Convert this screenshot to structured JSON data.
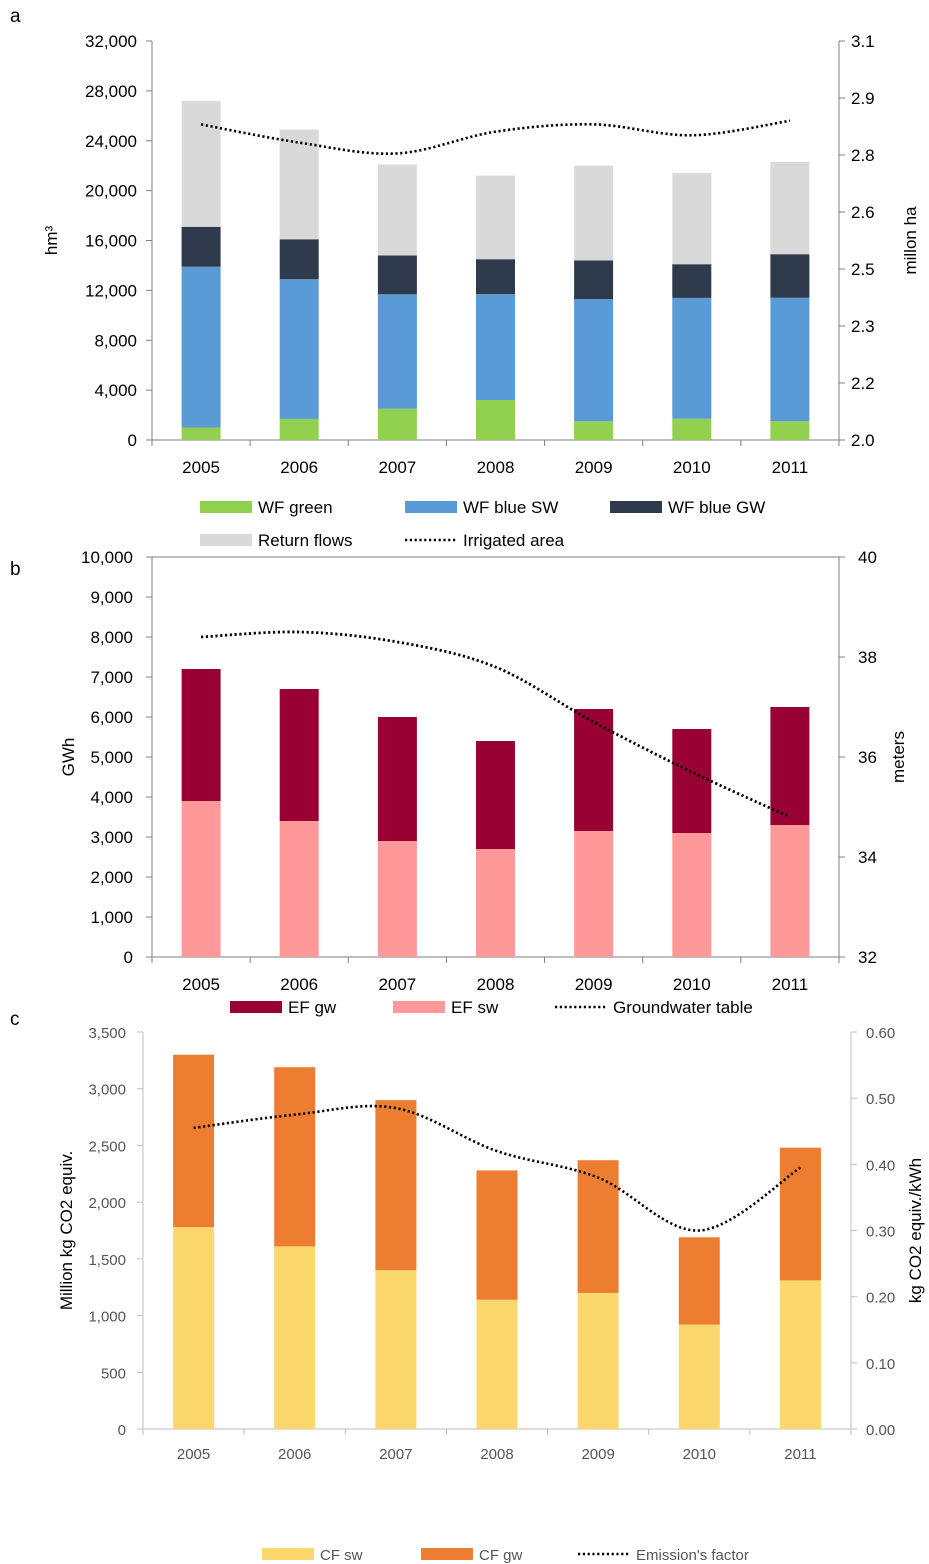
{
  "chart_data": [
    {
      "panel": "a",
      "type": "bar",
      "stacked": true,
      "categories": [
        "2005",
        "2006",
        "2007",
        "2008",
        "2009",
        "2010",
        "2011"
      ],
      "ylabel": "hm³",
      "ylim": [
        0,
        32000
      ],
      "yticks": [
        "0",
        "4,000",
        "8,000",
        "12,000",
        "16,000",
        "20,000",
        "24,000",
        "28,000",
        "32,000"
      ],
      "y2label": "millon ha",
      "y2lim": [
        2.0,
        3.1
      ],
      "y2ticks": [
        "2.0",
        "2.2",
        "2.3",
        "2.5",
        "2.6",
        "2.8",
        "2.9",
        "3.1"
      ],
      "series": [
        {
          "name": "WF green",
          "color": "#92d050",
          "values": [
            1000,
            1700,
            2500,
            3200,
            1500,
            1700,
            1500
          ]
        },
        {
          "name": "WF blue SW",
          "color": "#5b9bd5",
          "values": [
            12900,
            11200,
            9200,
            8500,
            9800,
            9700,
            9900
          ]
        },
        {
          "name": "WF blue GW",
          "color": "#2f3a4d",
          "values": [
            3200,
            3200,
            3100,
            2800,
            3100,
            2700,
            3500
          ]
        },
        {
          "name": "Return flows",
          "color": "#d9d9d9",
          "values": [
            10100,
            8800,
            7300,
            6700,
            7600,
            7300,
            7400
          ]
        }
      ],
      "line": {
        "name": "Irrigated area",
        "axis": "right",
        "style": "dotted",
        "values": [
          2.87,
          2.82,
          2.79,
          2.85,
          2.87,
          2.84,
          2.88
        ]
      },
      "legend": "bottom",
      "grid": false
    },
    {
      "panel": "b",
      "type": "bar",
      "stacked": true,
      "categories": [
        "2005",
        "2006",
        "2007",
        "2008",
        "2009",
        "2010",
        "2011"
      ],
      "ylabel": "GWh",
      "ylim": [
        0,
        10000
      ],
      "yticks": [
        "0",
        "1,000",
        "2,000",
        "3,000",
        "4,000",
        "5,000",
        "6,000",
        "7,000",
        "8,000",
        "9,000",
        "10,000"
      ],
      "y2label": "meters",
      "y2lim": [
        32,
        40
      ],
      "y2ticks": [
        "32",
        "34",
        "36",
        "38",
        "40"
      ],
      "series": [
        {
          "name": "EF sw",
          "color": "#ff9999",
          "values": [
            3900,
            3400,
            2900,
            2700,
            3150,
            3100,
            3300
          ]
        },
        {
          "name": "EF gw",
          "color": "#990033",
          "values": [
            3300,
            3300,
            3100,
            2700,
            3050,
            2600,
            2950
          ]
        }
      ],
      "line": {
        "name": "Groundwater table",
        "axis": "right",
        "style": "dotted",
        "values": [
          38.4,
          38.5,
          38.3,
          37.8,
          36.7,
          35.7,
          34.8
        ]
      },
      "legend": "bottom",
      "grid": false
    },
    {
      "panel": "c",
      "type": "bar",
      "stacked": true,
      "categories": [
        "2005",
        "2006",
        "2007",
        "2008",
        "2009",
        "2010",
        "2011"
      ],
      "ylabel": "Million kg CO2 equiv.",
      "ylim": [
        0,
        3500
      ],
      "yticks": [
        "0",
        "500",
        "1,000",
        "1,500",
        "2,000",
        "2,500",
        "3,000",
        "3,500"
      ],
      "y2label": "kg CO2 equiv./kWh",
      "y2lim": [
        0,
        0.6
      ],
      "y2ticks": [
        "0.00",
        "0.10",
        "0.20",
        "0.30",
        "0.40",
        "0.50",
        "0.60"
      ],
      "series": [
        {
          "name": "CF sw",
          "color": "#fcd76b",
          "values": [
            1780,
            1610,
            1400,
            1140,
            1200,
            920,
            1310
          ]
        },
        {
          "name": "CF gw",
          "color": "#ed7d31",
          "values": [
            1520,
            1580,
            1500,
            1140,
            1170,
            770,
            1170
          ]
        }
      ],
      "line": {
        "name": "Emission's factor",
        "axis": "right",
        "style": "dotted",
        "values": [
          0.455,
          0.475,
          0.485,
          0.42,
          0.38,
          0.3,
          0.395
        ]
      },
      "legend": "bottom",
      "grid": false
    }
  ]
}
